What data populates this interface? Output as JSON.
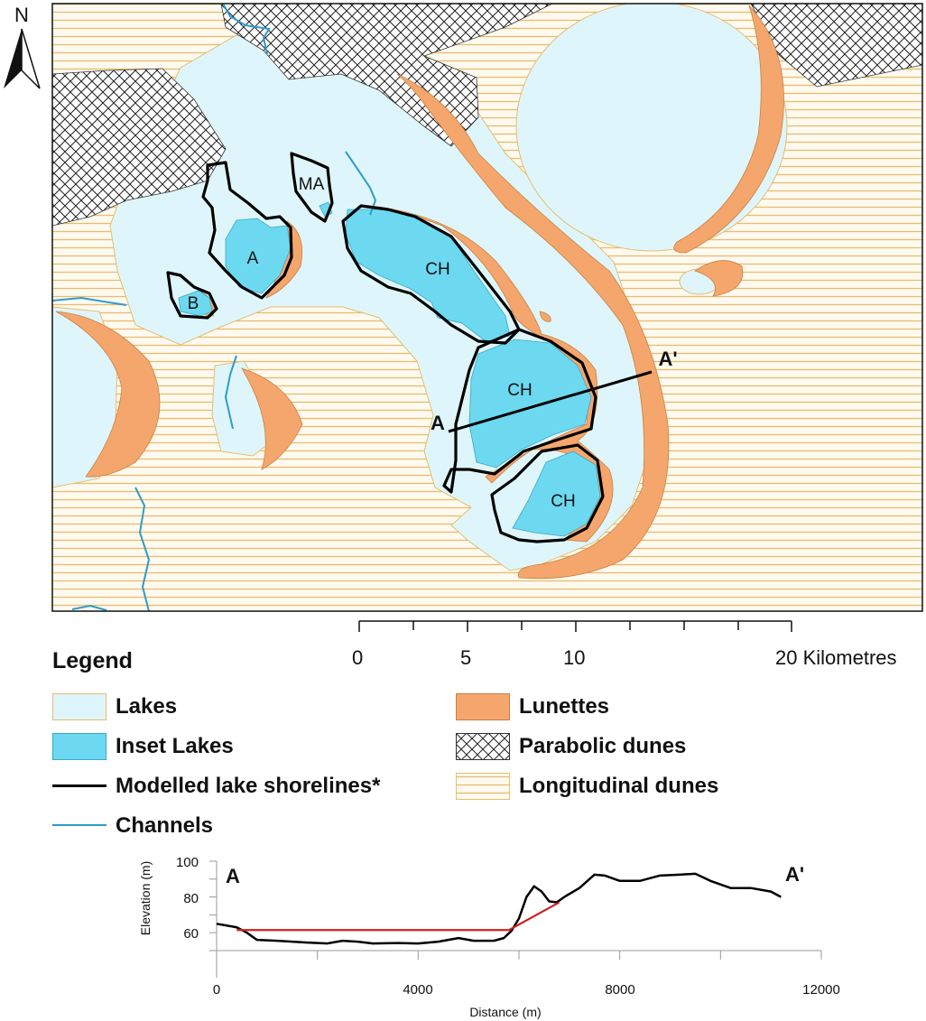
{
  "map": {
    "north_label": "N",
    "lake_labels": {
      "a": "A",
      "b": "B",
      "ma": "MA",
      "ch1": "CH",
      "ch2": "CH",
      "ch3": "CH"
    },
    "section": {
      "start": "A",
      "end": "A'"
    },
    "colors": {
      "lakes": "#def6fb",
      "inset_lakes": "#6cd9f0",
      "lunettes": "#f5a66d",
      "shorelines": "#000000",
      "channels": "#2e9cc9",
      "longitudinal_dunes_lines": "#e7bd6e",
      "longitudinal_dunes_bg": "#fffaf0"
    }
  },
  "scale_bar": {
    "ticks": [
      "0",
      "5",
      "10",
      "20 Kilometres"
    ]
  },
  "legend": {
    "title": "Legend",
    "items": [
      {
        "label": "Lakes",
        "symbol": "lake-fill"
      },
      {
        "label": "Inset Lakes",
        "symbol": "inset-lake-fill"
      },
      {
        "label": "Modelled lake shorelines*",
        "symbol": "black-line"
      },
      {
        "label": "Channels",
        "symbol": "blue-line"
      },
      {
        "label": "Lunettes",
        "symbol": "lunette-fill"
      },
      {
        "label": "Parabolic dunes",
        "symbol": "crosshatch"
      },
      {
        "label": "Longitudinal dunes",
        "symbol": "horizontal-lines"
      }
    ]
  },
  "chart_data": {
    "type": "line",
    "xlabel": "Distance (m)",
    "ylabel": "Elevation (m)",
    "xlim": [
      0,
      12000
    ],
    "ylim": [
      50,
      100
    ],
    "x_ticks": [
      "0",
      "4000",
      "8000",
      "12000"
    ],
    "y_ticks": [
      "60",
      "80",
      "100"
    ],
    "start_label": "A",
    "end_label": "A'",
    "series": [
      {
        "color": "#000000",
        "points": [
          [
            0,
            65
          ],
          [
            200,
            64
          ],
          [
            400,
            63
          ],
          [
            600,
            60
          ],
          [
            800,
            56
          ],
          [
            1200,
            55.5
          ],
          [
            1800,
            54.5
          ],
          [
            2200,
            54
          ],
          [
            2500,
            55.5
          ],
          [
            2800,
            55
          ],
          [
            3100,
            54
          ],
          [
            3600,
            54.2
          ],
          [
            4000,
            54
          ],
          [
            4400,
            55
          ],
          [
            4800,
            57
          ],
          [
            5100,
            55.5
          ],
          [
            5500,
            55.5
          ],
          [
            5700,
            57
          ],
          [
            5850,
            61
          ],
          [
            6000,
            68
          ],
          [
            6150,
            80
          ],
          [
            6300,
            86
          ],
          [
            6450,
            83
          ],
          [
            6600,
            77.5
          ],
          [
            6750,
            77
          ],
          [
            6900,
            80
          ],
          [
            7200,
            85
          ],
          [
            7500,
            92.5
          ],
          [
            7700,
            92
          ],
          [
            8000,
            89
          ],
          [
            8400,
            89
          ],
          [
            8800,
            92
          ],
          [
            9200,
            92.5
          ],
          [
            9500,
            93
          ],
          [
            9800,
            89
          ],
          [
            10200,
            85
          ],
          [
            10600,
            85
          ],
          [
            11000,
            83
          ],
          [
            11200,
            80
          ]
        ]
      },
      {
        "color": "#cc2222",
        "points": [
          [
            400,
            61.5
          ],
          [
            5800,
            61.5
          ],
          [
            6800,
            77
          ]
        ]
      }
    ]
  }
}
